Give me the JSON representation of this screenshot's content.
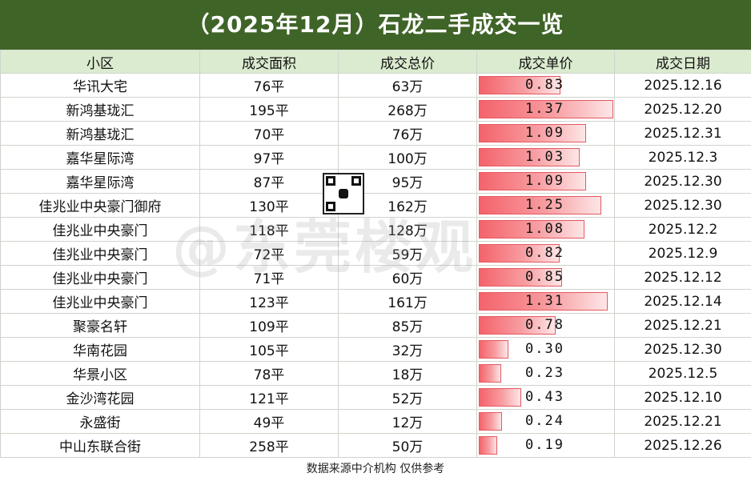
{
  "title": "（2025年12月）石龙二手成交一览",
  "headers": [
    "小区",
    "成交面积",
    "成交总价",
    "成交单价",
    "成交日期"
  ],
  "rows": [
    {
      "name": "华讯大宅",
      "area": "76平",
      "total": "63万",
      "unit": "0.83",
      "unit_value": 0.83,
      "date": "2025.12.16"
    },
    {
      "name": "新鸿基珑汇",
      "area": "195平",
      "total": "268万",
      "unit": "1.37",
      "unit_value": 1.37,
      "date": "2025.12.20"
    },
    {
      "name": "新鸿基珑汇",
      "area": "70平",
      "total": "76万",
      "unit": "1.09",
      "unit_value": 1.09,
      "date": "2025.12.31"
    },
    {
      "name": "嘉华星际湾",
      "area": "97平",
      "total": "100万",
      "unit": "1.03",
      "unit_value": 1.03,
      "date": "2025.12.3"
    },
    {
      "name": "嘉华星际湾",
      "area": "87平",
      "total": "95万",
      "unit": "1.09",
      "unit_value": 1.09,
      "date": "2025.12.30"
    },
    {
      "name": "佳兆业中央豪门御府",
      "area": "130平",
      "total": "162万",
      "unit": "1.25",
      "unit_value": 1.25,
      "date": "2025.12.30"
    },
    {
      "name": "佳兆业中央豪门",
      "area": "118平",
      "total": "128万",
      "unit": "1.08",
      "unit_value": 1.08,
      "date": "2025.12.2"
    },
    {
      "name": "佳兆业中央豪门",
      "area": "72平",
      "total": "59万",
      "unit": "0.82",
      "unit_value": 0.82,
      "date": "2025.12.9"
    },
    {
      "name": "佳兆业中央豪门",
      "area": "71平",
      "total": "60万",
      "unit": "0.85",
      "unit_value": 0.85,
      "date": "2025.12.12"
    },
    {
      "name": "佳兆业中央豪门",
      "area": "123平",
      "total": "161万",
      "unit": "1.31",
      "unit_value": 1.31,
      "date": "2025.12.14"
    },
    {
      "name": "聚豪名轩",
      "area": "109平",
      "total": "85万",
      "unit": "0.78",
      "unit_value": 0.78,
      "date": "2025.12.21"
    },
    {
      "name": "华南花园",
      "area": "105平",
      "total": "32万",
      "unit": "0.30",
      "unit_value": 0.3,
      "date": "2025.12.30"
    },
    {
      "name": "华景小区",
      "area": "78平",
      "total": "18万",
      "unit": "0.23",
      "unit_value": 0.23,
      "date": "2025.12.5"
    },
    {
      "name": "金沙湾花园",
      "area": "121平",
      "total": "52万",
      "unit": "0.43",
      "unit_value": 0.43,
      "date": "2025.12.10"
    },
    {
      "name": "永盛街",
      "area": "49平",
      "total": "12万",
      "unit": "0.24",
      "unit_value": 0.24,
      "date": "2025.12.21"
    },
    {
      "name": "中山东联合街",
      "area": "258平",
      "total": "50万",
      "unit": "0.19",
      "unit_value": 0.19,
      "date": "2025.12.26"
    }
  ],
  "footer": "数据来源中介机构 仅供参考",
  "watermark": "@东莞楼观",
  "colors": {
    "title_bg": "#3f6428",
    "header_bg": "#dbebcf",
    "bar": "#f4636b"
  }
}
